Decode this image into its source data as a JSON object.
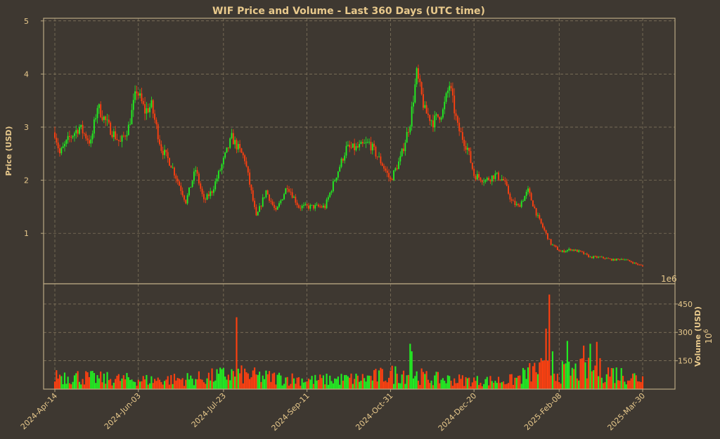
{
  "chart_data": {
    "type": "candlestick_with_volume",
    "title": "WIF Price and Volume - Last 360 Days (UTC time)",
    "price_ylabel": "Price (USD)",
    "volume_ylabel": "Volume (USD)",
    "volume_multiplier": "1e6",
    "volume_exponent_label": "10",
    "volume_exponent_sup": "6",
    "price_ylim": [
      0.05,
      5.05
    ],
    "price_yticks": [
      "1",
      "2",
      "3",
      "4",
      "5"
    ],
    "volume_ylim": [
      0,
      520
    ],
    "volume_yticks": [
      "150",
      "300",
      "450"
    ],
    "x_range": [
      "2024-04-05",
      "2025-03-30"
    ],
    "x_ticks": [
      "2024-Apr-14",
      "2024-Jun-03",
      "2024-Jul-23",
      "2024-Sep-11",
      "2024-Oct-31",
      "2024-Dec-20",
      "2025-Feb-08",
      "2025-Mar-30"
    ],
    "up_color": "#22ee22",
    "down_color": "#ff4010",
    "grid": true,
    "price_anchors": [
      [
        "2024-04-05",
        2.9
      ],
      [
        "2024-04-08",
        2.5
      ],
      [
        "2024-04-14",
        2.8
      ],
      [
        "2024-04-20",
        3.0
      ],
      [
        "2024-04-27",
        2.7
      ],
      [
        "2024-05-01",
        3.4
      ],
      [
        "2024-05-08",
        3.0
      ],
      [
        "2024-05-15",
        2.7
      ],
      [
        "2024-05-20",
        3.0
      ],
      [
        "2024-05-25",
        3.7
      ],
      [
        "2024-05-30",
        3.3
      ],
      [
        "2024-06-03",
        3.4
      ],
      [
        "2024-06-09",
        2.6
      ],
      [
        "2024-06-15",
        2.3
      ],
      [
        "2024-06-24",
        1.6
      ],
      [
        "2024-06-30",
        2.2
      ],
      [
        "2024-07-05",
        1.6
      ],
      [
        "2024-07-10",
        1.8
      ],
      [
        "2024-07-15",
        2.2
      ],
      [
        "2024-07-22",
        2.8
      ],
      [
        "2024-07-30",
        2.4
      ],
      [
        "2024-08-06",
        1.3
      ],
      [
        "2024-08-12",
        1.8
      ],
      [
        "2024-08-18",
        1.4
      ],
      [
        "2024-08-25",
        1.9
      ],
      [
        "2024-09-01",
        1.5
      ],
      [
        "2024-09-11",
        1.5
      ],
      [
        "2024-09-17",
        1.5
      ],
      [
        "2024-09-24",
        2.1
      ],
      [
        "2024-09-30",
        2.6
      ],
      [
        "2024-10-06",
        2.6
      ],
      [
        "2024-10-14",
        2.7
      ],
      [
        "2024-10-22",
        2.3
      ],
      [
        "2024-10-27",
        2.0
      ],
      [
        "2024-11-02",
        2.4
      ],
      [
        "2024-11-08",
        3.1
      ],
      [
        "2024-11-12",
        4.0
      ],
      [
        "2024-11-17",
        3.3
      ],
      [
        "2024-11-22",
        3.1
      ],
      [
        "2024-11-28",
        3.3
      ],
      [
        "2024-12-02",
        3.8
      ],
      [
        "2024-12-07",
        3.0
      ],
      [
        "2024-12-13",
        2.6
      ],
      [
        "2024-12-17",
        2.1
      ],
      [
        "2024-12-24",
        2.0
      ],
      [
        "2024-12-30",
        2.1
      ],
      [
        "2025-01-04",
        2.0
      ],
      [
        "2025-01-09",
        1.6
      ],
      [
        "2025-01-13",
        1.5
      ],
      [
        "2025-01-19",
        1.8
      ],
      [
        "2025-01-25",
        1.3
      ],
      [
        "2025-02-02",
        0.8
      ],
      [
        "2025-02-08",
        0.65
      ],
      [
        "2025-02-14",
        0.7
      ],
      [
        "2025-02-20",
        0.65
      ],
      [
        "2025-02-26",
        0.55
      ],
      [
        "2025-03-04",
        0.55
      ],
      [
        "2025-03-12",
        0.5
      ],
      [
        "2025-03-18",
        0.52
      ],
      [
        "2025-03-24",
        0.45
      ],
      [
        "2025-03-30",
        0.38
      ]
    ],
    "volume_anchors": [
      [
        "2024-04-05",
        95
      ],
      [
        "2024-05-01",
        70
      ],
      [
        "2024-06-03",
        60
      ],
      [
        "2024-07-01",
        70
      ],
      [
        "2024-07-23",
        100
      ],
      [
        "2024-08-10",
        80
      ],
      [
        "2024-09-11",
        60
      ],
      [
        "2024-10-10",
        70
      ],
      [
        "2024-11-05",
        110
      ],
      [
        "2024-11-20",
        70
      ],
      [
        "2024-12-20",
        55
      ],
      [
        "2025-01-10",
        60
      ],
      [
        "2025-01-25",
        130
      ],
      [
        "2025-02-08",
        110
      ],
      [
        "2025-03-01",
        130
      ],
      [
        "2025-03-30",
        70
      ]
    ],
    "volume_spikes": [
      [
        "2024-07-25",
        380
      ],
      [
        "2024-11-08",
        240
      ],
      [
        "2024-11-09",
        200
      ],
      [
        "2025-01-30",
        320
      ],
      [
        "2025-02-01",
        500
      ],
      [
        "2025-02-03",
        200
      ],
      [
        "2025-02-12",
        255
      ],
      [
        "2025-02-22",
        230
      ],
      [
        "2025-02-26",
        240
      ],
      [
        "2025-03-02",
        250
      ]
    ]
  }
}
